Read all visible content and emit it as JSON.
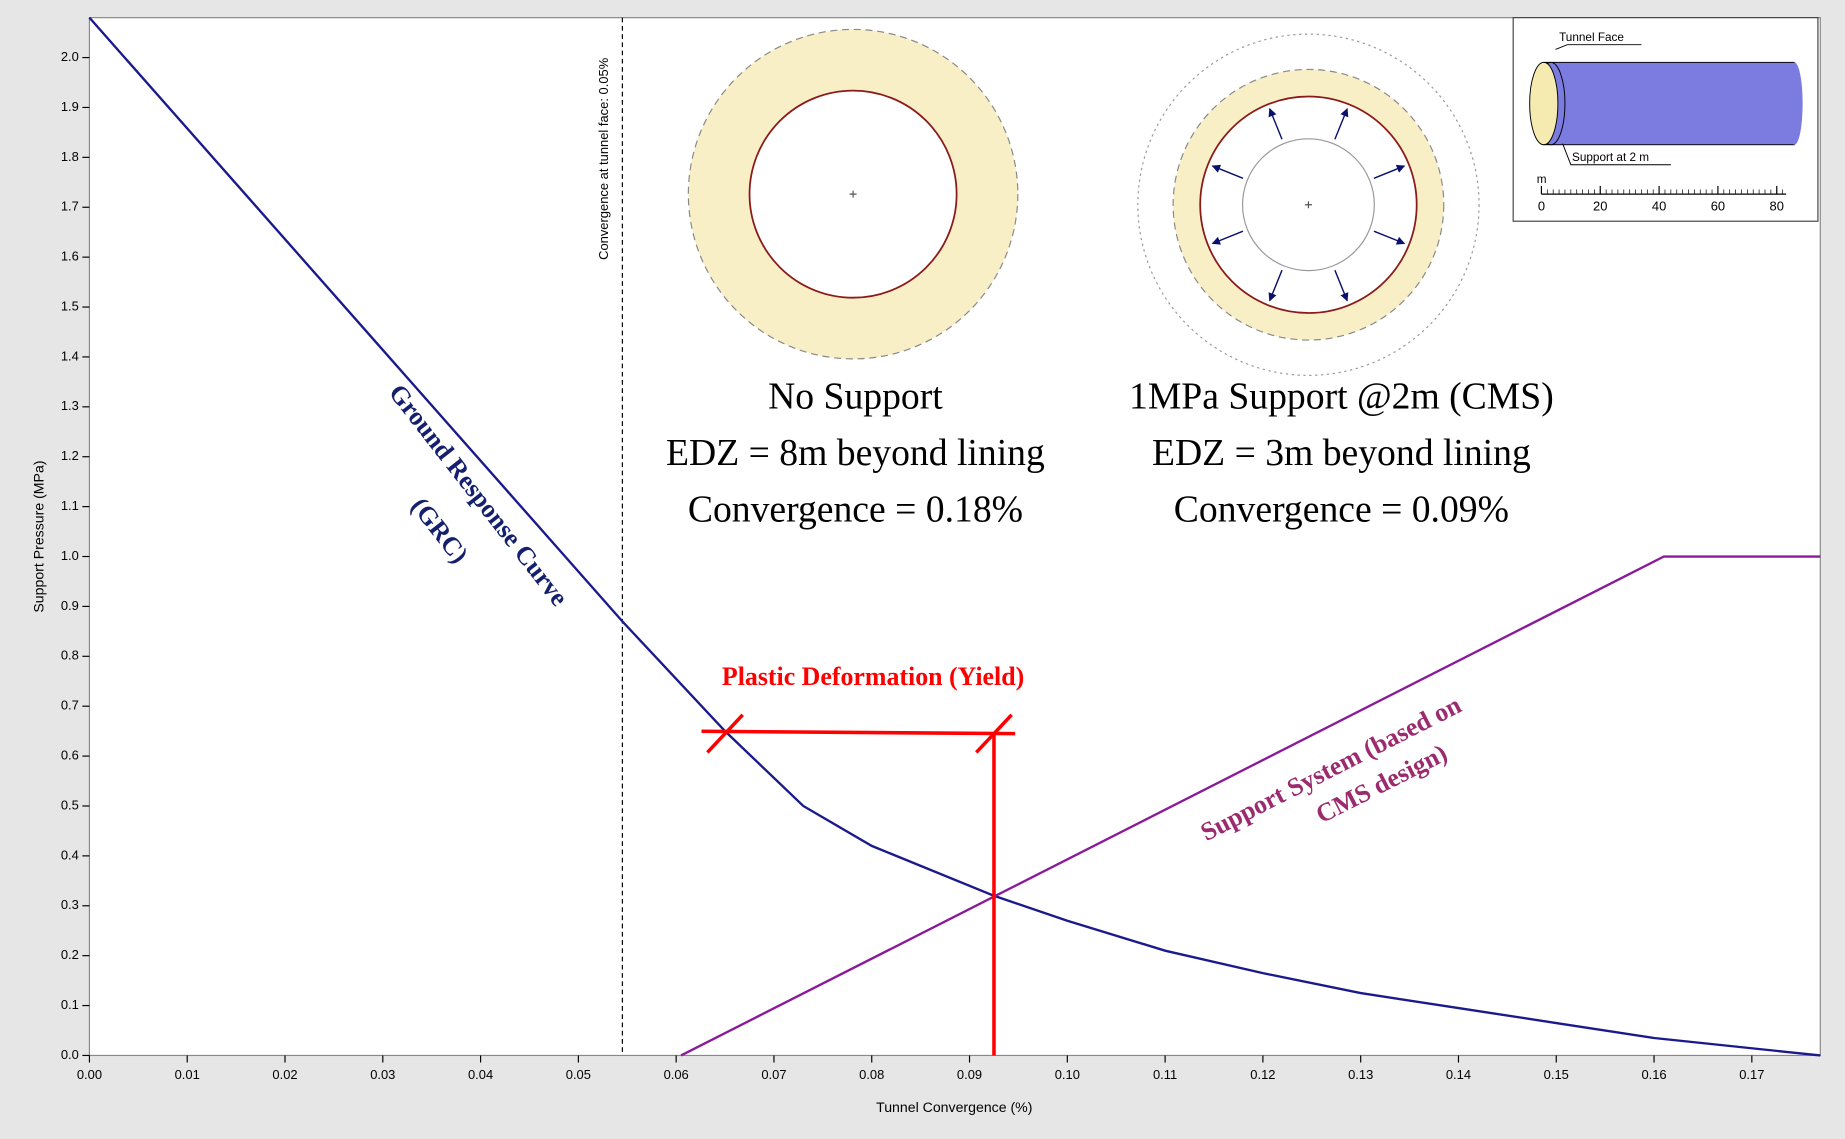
{
  "chart_data": {
    "type": "line",
    "x_label": "Tunnel Convergence (%)",
    "y_label": "Support Pressure (MPa)",
    "xlim": [
      0,
      0.177
    ],
    "ylim": [
      0,
      2.08
    ],
    "xticks": [
      {
        "value": 0,
        "label": "0.00"
      },
      0.01,
      0.02,
      0.03,
      0.04,
      0.05,
      0.06,
      0.07,
      0.08,
      0.09,
      {
        "value": 0.1,
        "label": "0.10"
      },
      0.11,
      0.12,
      0.13,
      0.14,
      0.15,
      0.16,
      0.17
    ],
    "yticks": [
      {
        "value": 0,
        "label": "0.0"
      },
      0.1,
      0.2,
      0.3,
      0.4,
      0.5,
      0.6,
      0.7,
      0.8,
      0.9,
      {
        "value": 1,
        "label": "1.0"
      },
      1.1,
      1.2,
      1.3,
      1.4,
      1.5,
      1.6,
      1.7,
      1.8,
      1.9,
      {
        "value": 2,
        "label": "2.0"
      }
    ],
    "series": [
      {
        "color": "#1a1a8c",
        "x": [
          0,
          0.0545,
          0.065,
          0.073,
          0.08,
          0.0925,
          0.1,
          0.11,
          0.12,
          0.13,
          0.14,
          0.15,
          0.16,
          0.177
        ],
        "values": [
          2.08,
          0.87,
          0.65,
          0.5,
          0.42,
          0.32,
          0.27,
          0.21,
          0.165,
          0.125,
          0.095,
          0.065,
          0.035,
          0
        ]
      },
      {
        "color": "#8b1a9a",
        "x": [
          0.0605,
          0.161,
          0.177
        ],
        "values": [
          0,
          1,
          1
        ]
      }
    ],
    "face_convergence": 0.0545,
    "yield_points": {
      "x": [
        0.065,
        0.0925
      ],
      "y": 0.645
    },
    "annotations": [
      "Ground Response Curve",
      "(GRC)",
      "Support System (based on",
      "CMS design)",
      "Plastic Deformation (Yield)",
      "Convergence at tunnel face: 0.05%"
    ],
    "cases": [
      [
        "No Support",
        "EDZ = 8m beyond lining",
        "Convergence = 0.18%"
      ],
      [
        "1MPa Support @2m (CMS)",
        "EDZ = 3m beyond lining",
        "Convergence = 0.09%"
      ]
    ],
    "inset": {
      "labels": [
        "Tunnel Face",
        "Support at 2 m",
        "m"
      ],
      "scale_ticks": [
        0,
        20,
        40,
        60,
        80
      ]
    }
  }
}
